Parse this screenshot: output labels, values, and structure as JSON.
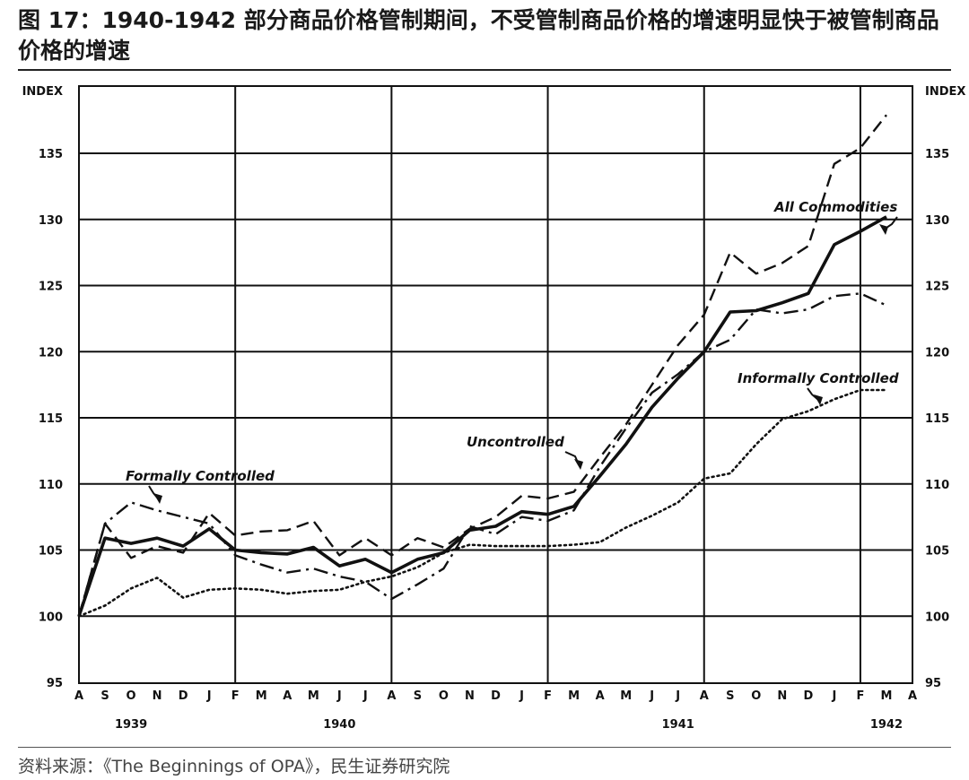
{
  "figure": {
    "title": "图 17：1940-1942 部分商品价格管制期间，不受管制商品价格的增速明显快于被管制商品价格的增速",
    "source": "资料来源：《The Beginnings of OPA》，民生证券研究院"
  },
  "chart_data": {
    "type": "line",
    "ylabel_left": "INDEX",
    "ylabel_right": "INDEX",
    "ylim": [
      95,
      138
    ],
    "yticks": [
      95,
      100,
      105,
      110,
      115,
      120,
      125,
      130,
      135
    ],
    "xlim": [
      "1939-08",
      "1942-04"
    ],
    "x_tick_labels": [
      "A",
      "S",
      "O",
      "N",
      "D",
      "J",
      "F",
      "M",
      "A",
      "M",
      "J",
      "J",
      "A",
      "S",
      "O",
      "N",
      "D",
      "J",
      "F",
      "M",
      "A",
      "M",
      "J",
      "J",
      "A",
      "S",
      "O",
      "N",
      "D",
      "J",
      "F",
      "M",
      "A"
    ],
    "year_labels": [
      {
        "label": "1939",
        "x": "1939-10"
      },
      {
        "label": "1940",
        "x": "1940-06"
      },
      {
        "label": "1941",
        "x": "1941-07"
      },
      {
        "label": "1942",
        "x": "1942-03"
      }
    ],
    "grid": true,
    "x": [
      "1939-08",
      "1939-09",
      "1939-10",
      "1939-11",
      "1939-12",
      "1940-01",
      "1940-02",
      "1940-03",
      "1940-04",
      "1940-05",
      "1940-06",
      "1940-07",
      "1940-08",
      "1940-09",
      "1940-10",
      "1940-11",
      "1940-12",
      "1941-01",
      "1941-02",
      "1941-03",
      "1941-04",
      "1941-05",
      "1941-06",
      "1941-07",
      "1941-08",
      "1941-09",
      "1941-10",
      "1941-11",
      "1941-12",
      "1942-01",
      "1942-02",
      "1942-03"
    ],
    "series": [
      {
        "name": "All Commodities",
        "style": "solid",
        "values": [
          100,
          105.9,
          105.5,
          105.9,
          105.3,
          106.6,
          105.0,
          104.8,
          104.7,
          105.2,
          103.8,
          104.3,
          103.3,
          104.3,
          104.8,
          106.5,
          106.8,
          107.9,
          107.7,
          108.3,
          110.6,
          113.0,
          115.8,
          118.0,
          120.0,
          123.0,
          123.1,
          123.7,
          124.4,
          128.1,
          129.1,
          130.2
        ]
      },
      {
        "name": "Uncontrolled",
        "style": "dashed",
        "values": [
          100,
          107.0,
          104.4,
          105.3,
          104.8,
          107.8,
          106.1,
          106.4,
          106.5,
          107.2,
          104.6,
          105.9,
          104.6,
          105.9,
          105.2,
          106.6,
          107.5,
          109.1,
          108.9,
          109.4,
          112.0,
          114.5,
          117.5,
          120.5,
          122.8,
          127.5,
          125.9,
          126.7,
          128.0,
          134.2,
          135.4,
          137.9
        ]
      },
      {
        "name": "Formally Controlled",
        "style": "dash-dot",
        "values": [
          100,
          107.0,
          108.6,
          108.0,
          107.5,
          107.0,
          104.6,
          103.9,
          103.3,
          103.6,
          103.0,
          102.6,
          101.3,
          102.4,
          103.6,
          106.8,
          106.2,
          107.5,
          107.2,
          108.0,
          111.3,
          114.2,
          116.9,
          118.3,
          120.0,
          120.9,
          123.2,
          122.9,
          123.2,
          124.2,
          124.4,
          123.5
        ]
      },
      {
        "name": "Informally Controlled",
        "style": "dotted",
        "values": [
          100,
          100.8,
          102.1,
          102.9,
          101.4,
          102.0,
          102.1,
          102.0,
          101.7,
          101.9,
          102.0,
          102.6,
          103.0,
          103.7,
          104.8,
          105.4,
          105.3,
          105.3,
          105.3,
          105.4,
          105.6,
          106.7,
          107.6,
          108.6,
          110.4,
          110.8,
          113.0,
          114.9,
          115.5,
          116.4,
          117.1,
          117.1
        ]
      }
    ],
    "annotations": [
      {
        "text": "All Commodities",
        "series": "All Commodities"
      },
      {
        "text": "Uncontrolled",
        "series": "Uncontrolled"
      },
      {
        "text": "Formally Controlled",
        "series": "Formally Controlled"
      },
      {
        "text": "Informally Controlled",
        "series": "Informally Controlled"
      }
    ]
  }
}
